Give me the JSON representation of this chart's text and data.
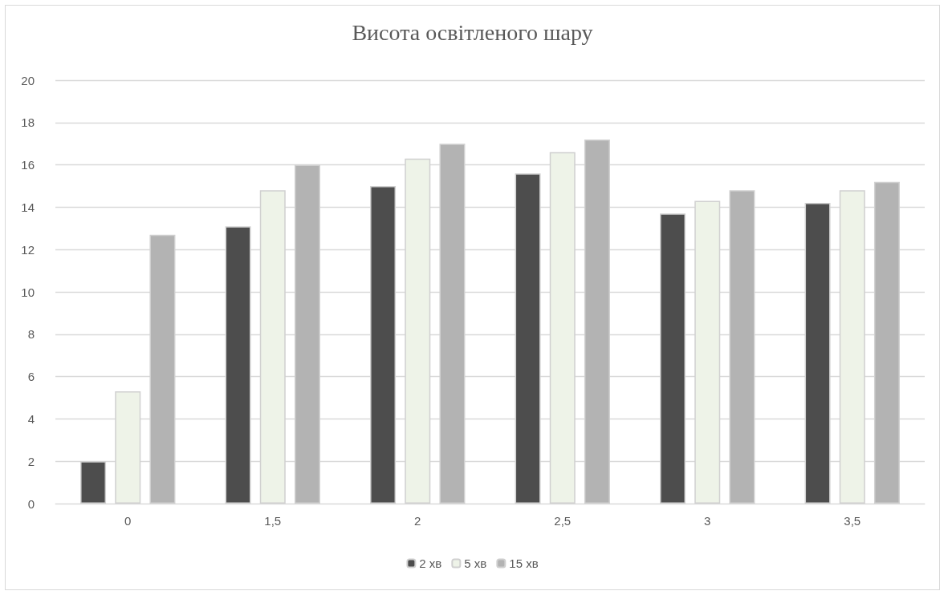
{
  "chart_data": {
    "type": "bar",
    "title": "Висота освітленого шару",
    "categories": [
      "0",
      "1,5",
      "2",
      "2,5",
      "3",
      "3,5"
    ],
    "series": [
      {
        "name": "2 хв",
        "color": "#4d4d4d",
        "values": [
          2.0,
          13.1,
          15.0,
          15.6,
          13.7,
          14.2
        ]
      },
      {
        "name": "5 хв",
        "color": "#eef3e8",
        "values": [
          5.3,
          14.8,
          16.3,
          16.6,
          14.3,
          14.8
        ]
      },
      {
        "name": "15 хв",
        "color": "#b3b3b3",
        "values": [
          12.7,
          16.0,
          17.0,
          17.2,
          14.8,
          15.2
        ]
      }
    ],
    "ylim": [
      0,
      20
    ],
    "yticks": [
      0,
      2,
      4,
      6,
      8,
      10,
      12,
      14,
      16,
      18,
      20
    ],
    "grid": "y",
    "legend": "bottom"
  }
}
